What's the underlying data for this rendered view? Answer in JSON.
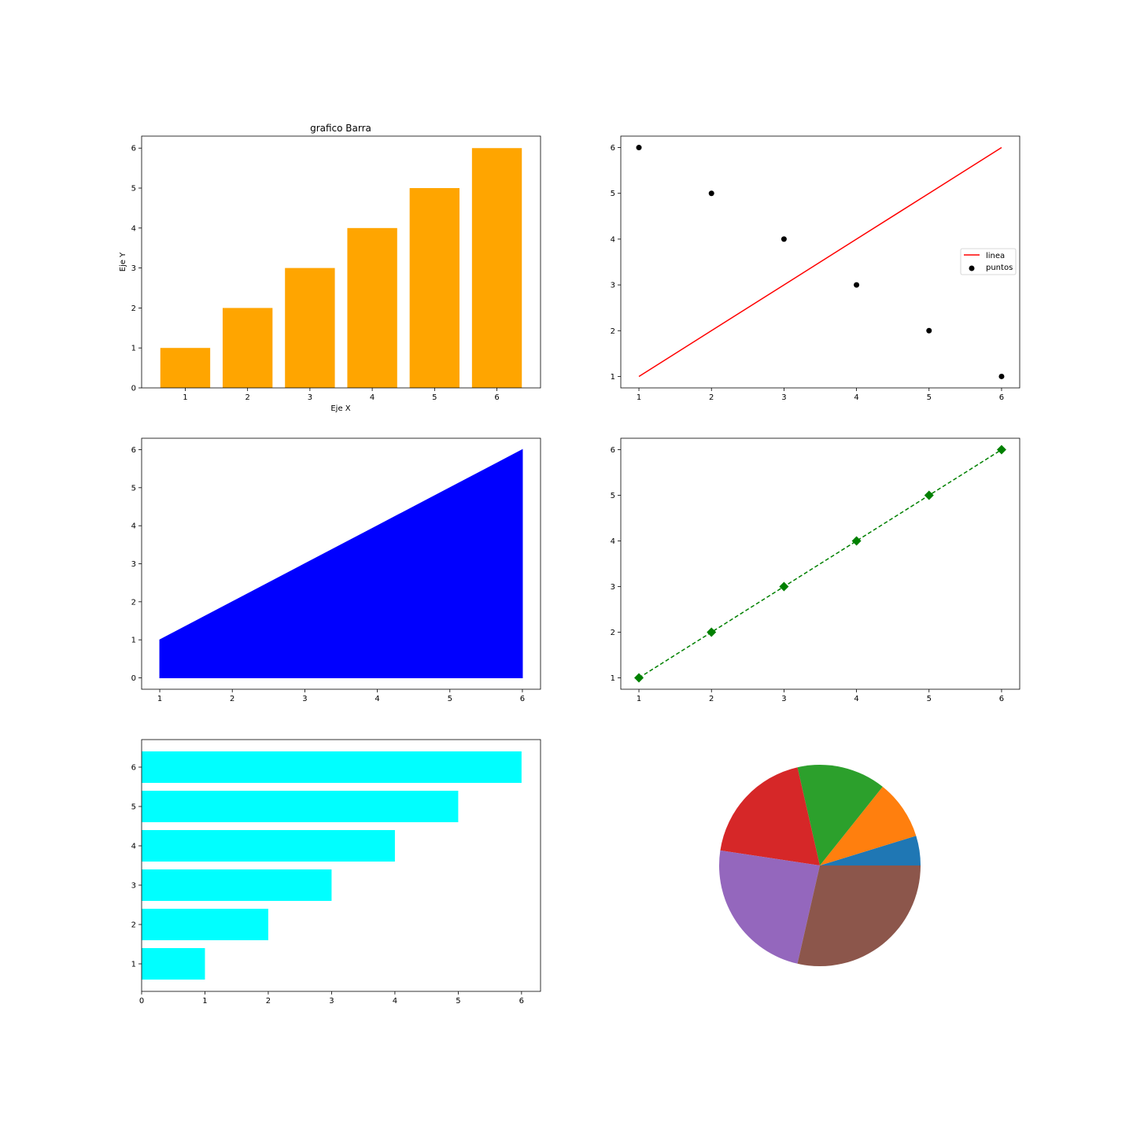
{
  "figure": {
    "background": "#ffffff"
  },
  "chart_data": [
    {
      "id": "bar",
      "type": "bar",
      "title": "grafico Barra",
      "xlabel": "Eje X",
      "ylabel": "Eje Y",
      "categories": [
        "1",
        "2",
        "3",
        "4",
        "5",
        "6"
      ],
      "x": [
        1,
        2,
        3,
        4,
        5,
        6
      ],
      "values": [
        1,
        2,
        3,
        4,
        5,
        6
      ],
      "color": "#ffa500",
      "xlim": [
        0.3,
        6.7
      ],
      "ylim": [
        0,
        6.3
      ],
      "xticks": [
        1,
        2,
        3,
        4,
        5,
        6
      ],
      "yticks": [
        0,
        1,
        2,
        3,
        4,
        5,
        6
      ],
      "grid": false
    },
    {
      "id": "line-scatter",
      "type": "line",
      "series": [
        {
          "name": "linea",
          "kind": "line",
          "x": [
            1,
            2,
            3,
            4,
            5,
            6
          ],
          "y": [
            1,
            2,
            3,
            4,
            5,
            6
          ],
          "color": "#ff0000"
        },
        {
          "name": "puntos",
          "kind": "scatter",
          "x": [
            1,
            2,
            3,
            4,
            5,
            6
          ],
          "y": [
            6,
            5,
            4,
            3,
            2,
            1
          ],
          "color": "#000000"
        }
      ],
      "legend": {
        "position": "center-right",
        "entries": [
          "linea",
          "puntos"
        ]
      },
      "xlim": [
        0.75,
        6.25
      ],
      "ylim": [
        0.75,
        6.25
      ],
      "xticks": [
        1,
        2,
        3,
        4,
        5,
        6
      ],
      "yticks": [
        1,
        2,
        3,
        4,
        5,
        6
      ],
      "grid": false
    },
    {
      "id": "area",
      "type": "area",
      "x": [
        1,
        2,
        3,
        4,
        5,
        6
      ],
      "y": [
        1,
        2,
        3,
        4,
        5,
        6
      ],
      "color": "#0000ff",
      "xlim": [
        0.75,
        6.25
      ],
      "ylim": [
        -0.3,
        6.3
      ],
      "xticks": [
        1,
        2,
        3,
        4,
        5,
        6
      ],
      "yticks": [
        0,
        1,
        2,
        3,
        4,
        5,
        6
      ],
      "grid": false
    },
    {
      "id": "dashed-line",
      "type": "line",
      "series": [
        {
          "x": [
            1,
            2,
            3,
            4,
            5,
            6
          ],
          "y": [
            1,
            2,
            3,
            4,
            5,
            6
          ],
          "color": "#008000",
          "linestyle": "dashed",
          "marker": "diamond"
        }
      ],
      "xlim": [
        0.75,
        6.25
      ],
      "ylim": [
        0.75,
        6.25
      ],
      "xticks": [
        1,
        2,
        3,
        4,
        5,
        6
      ],
      "yticks": [
        1,
        2,
        3,
        4,
        5,
        6
      ],
      "grid": false
    },
    {
      "id": "barh",
      "type": "bar",
      "orientation": "horizontal",
      "categories": [
        "1",
        "2",
        "3",
        "4",
        "5",
        "6"
      ],
      "y": [
        1,
        2,
        3,
        4,
        5,
        6
      ],
      "values": [
        1,
        2,
        3,
        4,
        5,
        6
      ],
      "color": "#00ffff",
      "xlim": [
        0,
        6.3
      ],
      "ylim": [
        0.3,
        6.7
      ],
      "xticks": [
        0,
        1,
        2,
        3,
        4,
        5,
        6
      ],
      "yticks": [
        1,
        2,
        3,
        4,
        5,
        6
      ],
      "grid": false
    },
    {
      "id": "pie",
      "type": "pie",
      "values": [
        1,
        2,
        3,
        4,
        5,
        6
      ],
      "colors": [
        "#1f77b4",
        "#ff7f0e",
        "#2ca02c",
        "#d62728",
        "#9467bd",
        "#8c564b"
      ],
      "start_angle": 0,
      "direction": "counterclockwise"
    }
  ]
}
